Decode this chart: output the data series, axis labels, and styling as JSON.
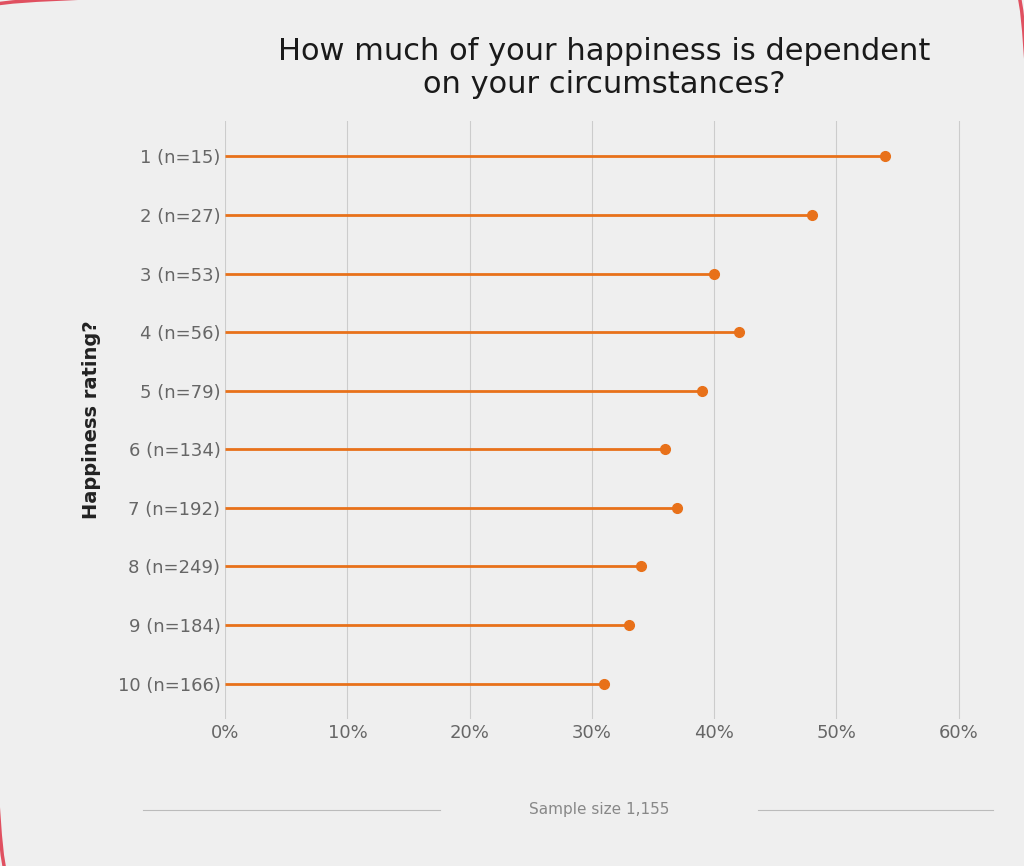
{
  "title": "How much of your happiness is dependent\non your circumstances?",
  "ylabel": "Happiness rating?",
  "xlabel_note": "Sample size 1,155",
  "categories": [
    "1 (n=15)",
    "2 (n=27)",
    "3 (n=53)",
    "4 (n=56)",
    "5 (n=79)",
    "6 (n=134)",
    "7 (n=192)",
    "8 (n=249)",
    "9 (n=184)",
    "10 (n=166)"
  ],
  "values": [
    0.54,
    0.48,
    0.4,
    0.42,
    0.39,
    0.36,
    0.37,
    0.34,
    0.33,
    0.31
  ],
  "line_color": "#E8711A",
  "dot_color": "#E8711A",
  "background_color": "#EFEFEF",
  "grid_color": "#CCCCCC",
  "title_fontsize": 22,
  "ylabel_fontsize": 14,
  "tick_fontsize": 13,
  "note_fontsize": 11,
  "xlim": [
    0,
    0.62
  ],
  "xticks": [
    0,
    0.1,
    0.2,
    0.3,
    0.4,
    0.5,
    0.6
  ]
}
